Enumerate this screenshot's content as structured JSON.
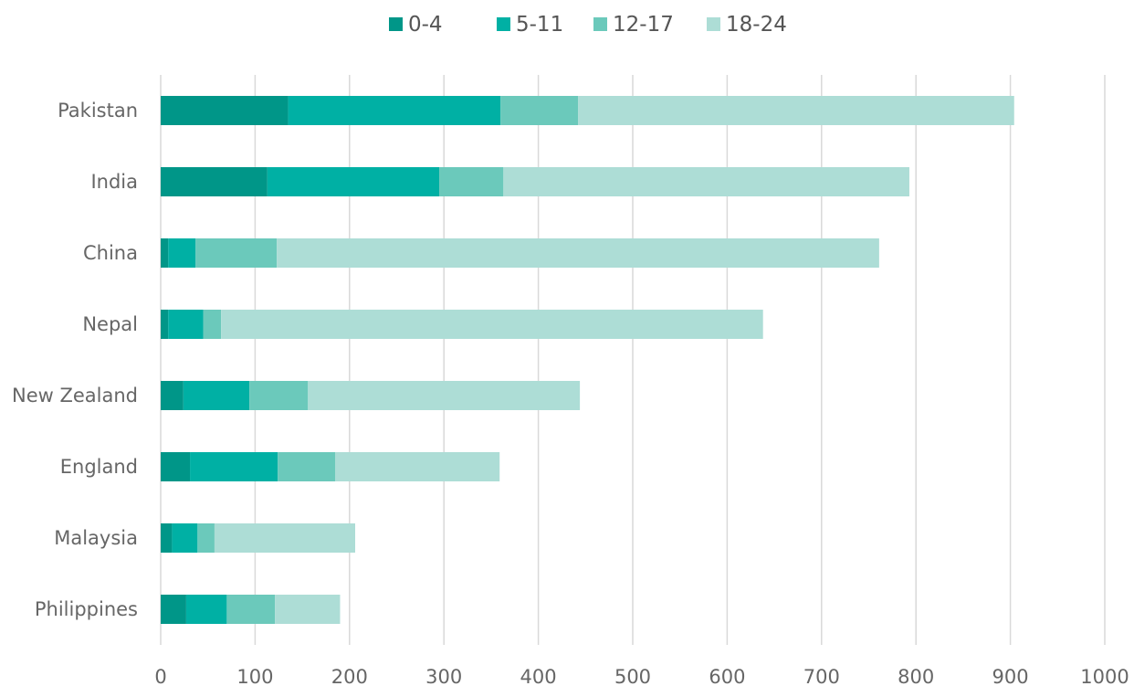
{
  "chart_data": {
    "type": "bar",
    "orientation": "horizontal",
    "stacked": true,
    "title": "",
    "xlabel": "",
    "ylabel": "",
    "categories": [
      "Pakistan",
      "India",
      "China",
      "Nepal",
      "New Zealand",
      "England",
      "Malaysia",
      "Philippines"
    ],
    "series": [
      {
        "name": "0-4",
        "color": "#009688",
        "values": [
          135,
          113,
          8,
          8,
          24,
          31,
          12,
          27
        ]
      },
      {
        "name": "5-11",
        "color": "#00B0A4",
        "values": [
          225,
          182,
          29,
          37,
          70,
          93,
          27,
          43
        ]
      },
      {
        "name": "12-17",
        "color": "#6BC9BB",
        "values": [
          82,
          68,
          86,
          19,
          62,
          61,
          18,
          51
        ]
      },
      {
        "name": "18-24",
        "color": "#ADDDD6",
        "values": [
          462,
          430,
          638,
          574,
          288,
          174,
          149,
          69
        ]
      }
    ],
    "xlim": [
      0,
      1000
    ],
    "xticks": [
      0,
      100,
      200,
      300,
      400,
      500,
      600,
      700,
      800,
      900,
      1000
    ],
    "grid": true,
    "legend_position": "top"
  }
}
